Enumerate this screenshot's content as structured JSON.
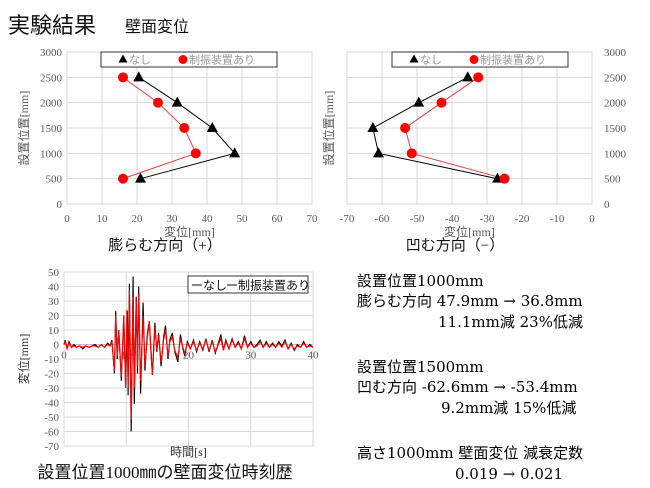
{
  "slide": {
    "title": "実験結果",
    "subtitle": "壁面変位"
  },
  "colors": {
    "none": "#000000",
    "damper": "#ff0000",
    "damper_line": "#e04040",
    "grid": "#d9d9d9",
    "axis_text": "#595959"
  },
  "chart_data": [
    {
      "type": "line",
      "caption": "膨らむ方向（+）",
      "xlabel": "変位[mm]",
      "ylabel": "設置位置[mm]",
      "xlim": [
        0,
        70
      ],
      "ylim": [
        0,
        3000
      ],
      "xticks": [
        "0",
        "10",
        "20",
        "30",
        "40",
        "50",
        "60",
        "70"
      ],
      "yticks": [
        "0",
        "500",
        "1000",
        "1500",
        "2000",
        "2500",
        "3000"
      ],
      "grid": true,
      "legend": "top",
      "series": [
        {
          "name": "なし",
          "marker": "triangle",
          "color": "#000000",
          "points": [
            [
              21,
              500
            ],
            [
              47.9,
              1000
            ],
            [
              41.5,
              1500
            ],
            [
              31.5,
              2000
            ],
            [
              20.5,
              2500
            ]
          ]
        },
        {
          "name": "制振装置あり",
          "marker": "circle",
          "color": "#ff0000",
          "points": [
            [
              16,
              500
            ],
            [
              36.8,
              1000
            ],
            [
              33.5,
              1500
            ],
            [
              26,
              2000
            ],
            [
              16,
              2500
            ]
          ]
        }
      ]
    },
    {
      "type": "line",
      "caption": "凹む方向（−）",
      "xlabel": "変位[mm]",
      "ylabel": "設置位置[mm]",
      "xlim": [
        -70,
        0
      ],
      "ylim": [
        0,
        3000
      ],
      "xticks": [
        "-70",
        "-60",
        "-50",
        "-40",
        "-30",
        "-20",
        "-10",
        "0"
      ],
      "yticks": [
        "0",
        "500",
        "1000",
        "1500",
        "2000",
        "2500",
        "3000"
      ],
      "grid": true,
      "legend": "top",
      "yaxis_side": "right",
      "series": [
        {
          "name": "なし",
          "marker": "triangle",
          "color": "#000000",
          "points": [
            [
              -27,
              500
            ],
            [
              -61,
              1000
            ],
            [
              -62.6,
              1500
            ],
            [
              -49.5,
              2000
            ],
            [
              -35.5,
              2500
            ]
          ]
        },
        {
          "name": "制振装置あり",
          "marker": "circle",
          "color": "#ff0000",
          "points": [
            [
              -25,
              500
            ],
            [
              -51.5,
              1000
            ],
            [
              -53.4,
              1500
            ],
            [
              -43,
              2000
            ],
            [
              -32.5,
              2500
            ]
          ]
        }
      ]
    },
    {
      "type": "line",
      "caption": "設置位置1000㎜の壁面変位時刻歴",
      "xlabel": "時間[s]",
      "ylabel": "変位[mm]",
      "xlim": [
        0,
        40
      ],
      "ylim": [
        -70,
        50
      ],
      "xticks": [
        "0",
        "10",
        "20",
        "30",
        "40"
      ],
      "yticks": [
        "-70",
        "-60",
        "-50",
        "-40",
        "-30",
        "-20",
        "-10",
        "0",
        "10",
        "20",
        "30",
        "40",
        "50"
      ],
      "grid": true,
      "legend": "top-right",
      "series": [
        {
          "name": "なし",
          "color": "#000000",
          "points": [
            [
              0,
              0
            ],
            [
              0.2,
              3
            ],
            [
              0.5,
              -3
            ],
            [
              0.8,
              2
            ],
            [
              1.2,
              -2
            ],
            [
              1.6,
              0
            ],
            [
              2,
              -2
            ],
            [
              2.5,
              -1
            ],
            [
              3,
              -3
            ],
            [
              3.5,
              -1
            ],
            [
              4,
              -2
            ],
            [
              4.5,
              -1
            ],
            [
              5,
              0
            ],
            [
              5.5,
              -2
            ],
            [
              6,
              0
            ],
            [
              6.5,
              -2
            ],
            [
              7,
              1
            ],
            [
              7.4,
              -1
            ],
            [
              7.7,
              3
            ],
            [
              8.1,
              -20
            ],
            [
              8.3,
              23
            ],
            [
              8.55,
              -10
            ],
            [
              8.8,
              10
            ],
            [
              9.2,
              -25
            ],
            [
              9.6,
              20
            ],
            [
              9.9,
              -30
            ],
            [
              10.2,
              23
            ],
            [
              10.3,
              -35
            ],
            [
              10.5,
              42
            ],
            [
              10.8,
              -60
            ],
            [
              11.1,
              47
            ],
            [
              11.3,
              -41
            ],
            [
              11.6,
              33
            ],
            [
              11.8,
              -20
            ],
            [
              12.0,
              40
            ],
            [
              12.3,
              -34
            ],
            [
              12.7,
              29
            ],
            [
              13.0,
              -18
            ],
            [
              13.4,
              8
            ],
            [
              13.7,
              16
            ],
            [
              14.0,
              -5
            ],
            [
              14.2,
              -21
            ],
            [
              14.6,
              15
            ],
            [
              14.9,
              -5
            ],
            [
              15.2,
              8
            ],
            [
              15.6,
              -15
            ],
            [
              16.0,
              5
            ],
            [
              16.3,
              13
            ],
            [
              16.7,
              -10
            ],
            [
              17.0,
              3
            ],
            [
              17.4,
              8
            ],
            [
              17.8,
              -5
            ],
            [
              18.3,
              -12
            ],
            [
              18.7,
              7
            ],
            [
              19.1,
              -3
            ],
            [
              19.4,
              -8
            ],
            [
              19.8,
              2
            ],
            [
              20.3,
              -3
            ],
            [
              20.8,
              3
            ],
            [
              21.3,
              -5
            ],
            [
              21.8,
              2
            ],
            [
              22.3,
              -4
            ],
            [
              22.8,
              4
            ],
            [
              23.3,
              -5
            ],
            [
              23.8,
              3
            ],
            [
              24.3,
              -6
            ],
            [
              24.8,
              1
            ],
            [
              25.2,
              7
            ],
            [
              25.6,
              -4
            ],
            [
              26,
              3
            ],
            [
              26.5,
              -3
            ],
            [
              27,
              4
            ],
            [
              27.5,
              -2
            ],
            [
              28,
              2
            ],
            [
              28.5,
              -3
            ],
            [
              29,
              6
            ],
            [
              29.5,
              -2
            ],
            [
              30,
              2
            ],
            [
              30.5,
              -2
            ],
            [
              31,
              0
            ],
            [
              31.5,
              3
            ],
            [
              32,
              -2
            ],
            [
              32.5,
              2
            ],
            [
              33,
              -2
            ],
            [
              33.5,
              1
            ],
            [
              34,
              -2
            ],
            [
              34.5,
              2
            ],
            [
              35,
              -1
            ],
            [
              35.5,
              3
            ],
            [
              36,
              -3
            ],
            [
              36.5,
              1
            ],
            [
              37,
              -4
            ],
            [
              37.5,
              0
            ],
            [
              38,
              -2
            ],
            [
              38.5,
              2
            ],
            [
              39,
              -2
            ],
            [
              39.5,
              0
            ],
            [
              40,
              -2
            ]
          ]
        },
        {
          "name": "制振装置あり",
          "color": "#ff0000",
          "points": [
            [
              0,
              0
            ],
            [
              0.2,
              2
            ],
            [
              0.5,
              -3
            ],
            [
              0.8,
              1
            ],
            [
              1.2,
              -2
            ],
            [
              1.6,
              -1
            ],
            [
              2,
              -2
            ],
            [
              2.5,
              -1
            ],
            [
              3,
              -2
            ],
            [
              3.5,
              -1
            ],
            [
              4,
              -2
            ],
            [
              4.5,
              -1
            ],
            [
              5,
              -1
            ],
            [
              5.5,
              -2
            ],
            [
              6,
              0
            ],
            [
              6.5,
              -2
            ],
            [
              7,
              0
            ],
            [
              7.4,
              -1
            ],
            [
              7.7,
              2
            ],
            [
              8.1,
              -18
            ],
            [
              8.3,
              20
            ],
            [
              8.55,
              -8
            ],
            [
              8.8,
              9
            ],
            [
              9.2,
              -22
            ],
            [
              9.6,
              20
            ],
            [
              9.9,
              -30
            ],
            [
              10.1,
              24
            ],
            [
              10.3,
              -30
            ],
            [
              10.5,
              38
            ],
            [
              10.8,
              -52
            ],
            [
              11.1,
              33
            ],
            [
              11.3,
              -30
            ],
            [
              11.6,
              30
            ],
            [
              11.8,
              -15
            ],
            [
              12.0,
              35
            ],
            [
              12.3,
              -25
            ],
            [
              12.7,
              20
            ],
            [
              13.0,
              -15
            ],
            [
              13.4,
              5
            ],
            [
              13.7,
              16
            ],
            [
              14.0,
              -8
            ],
            [
              14.2,
              -21
            ],
            [
              14.6,
              12
            ],
            [
              14.9,
              -4
            ],
            [
              15.2,
              6
            ],
            [
              15.6,
              -12
            ],
            [
              16.0,
              3
            ],
            [
              16.3,
              10
            ],
            [
              16.7,
              -8
            ],
            [
              17.0,
              2
            ],
            [
              17.4,
              5
            ],
            [
              17.8,
              -4
            ],
            [
              18.3,
              -9
            ],
            [
              18.7,
              4
            ],
            [
              19.1,
              -2
            ],
            [
              19.4,
              -6
            ],
            [
              19.8,
              1
            ],
            [
              20.3,
              -3
            ],
            [
              20.8,
              2
            ],
            [
              21.3,
              -4
            ],
            [
              21.8,
              1
            ],
            [
              22.3,
              -3
            ],
            [
              22.8,
              3
            ],
            [
              23.3,
              -4
            ],
            [
              23.8,
              2
            ],
            [
              24.3,
              -5
            ],
            [
              24.8,
              0
            ],
            [
              25.2,
              4
            ],
            [
              25.6,
              -4
            ],
            [
              26,
              2
            ],
            [
              26.5,
              -3
            ],
            [
              27,
              3
            ],
            [
              27.5,
              -2
            ],
            [
              28,
              1
            ],
            [
              28.5,
              -3
            ],
            [
              29,
              4
            ],
            [
              29.5,
              -2
            ],
            [
              30,
              1
            ],
            [
              30.5,
              -2
            ],
            [
              31,
              -1
            ],
            [
              31.5,
              2
            ],
            [
              32,
              -2
            ],
            [
              32.5,
              1
            ],
            [
              33,
              -2
            ],
            [
              33.5,
              0
            ],
            [
              34,
              -2
            ],
            [
              34.5,
              1
            ],
            [
              35,
              -2
            ],
            [
              35.5,
              2
            ],
            [
              36,
              -3
            ],
            [
              36.5,
              0
            ],
            [
              37,
              -3
            ],
            [
              37.5,
              -1
            ],
            [
              38,
              -2
            ],
            [
              38.5,
              1
            ],
            [
              39,
              -2
            ],
            [
              39.5,
              -1
            ],
            [
              40,
              -2
            ]
          ]
        }
      ]
    }
  ],
  "legend_labels": {
    "none": "なし",
    "damper": "制振装置あり",
    "none_line": "ーなし",
    "damper_line": "ー制振装置あり"
  },
  "summary": {
    "block1": {
      "heading": "設置位置1000mm",
      "line": "膨らむ方向   47.9mm  →  36.8mm",
      "result": "11.1mm減  23%低減"
    },
    "block2": {
      "heading": "設置位置1500mm",
      "line": "凹む方向   -62.6mm  →  -53.4mm",
      "result": "9.2mm減  15%低減"
    },
    "block3": {
      "heading": "高さ1000mm  壁面変位  減衰定数",
      "result": "0.019  →  0.021"
    }
  }
}
